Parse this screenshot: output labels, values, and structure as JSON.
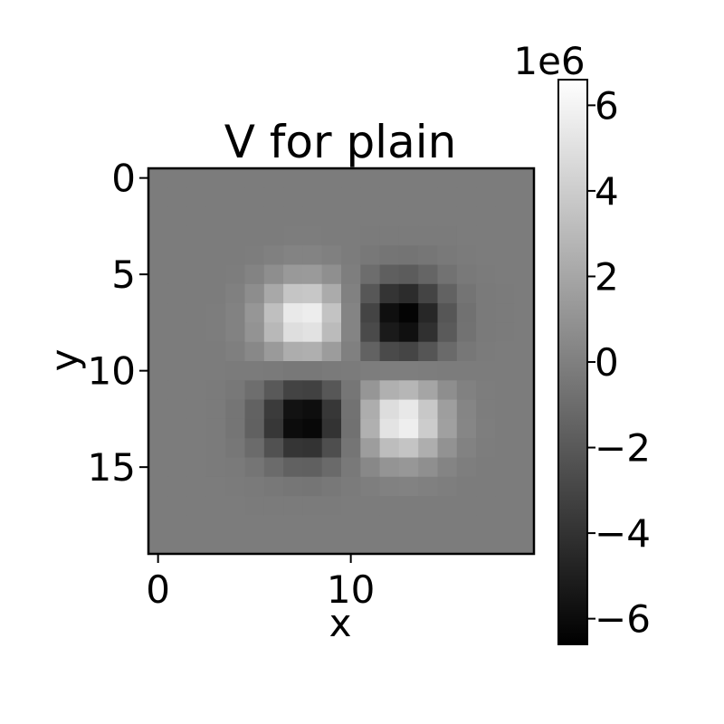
{
  "chart_data": {
    "type": "heatmap",
    "title": "V for plain",
    "xlabel": "x",
    "ylabel": "y",
    "grid_size": 20,
    "colormap": "gray",
    "colorbar": {
      "offset_label": "1e6",
      "range": [
        -6.6,
        6.6
      ],
      "ticks": [
        6,
        4,
        2,
        0,
        -2,
        -4,
        -6
      ],
      "tick_labels": [
        "6",
        "4",
        "2",
        "0",
        "−2",
        "−4",
        "−6"
      ]
    },
    "x_ticks": [
      0,
      10
    ],
    "x_tick_labels": [
      "0",
      "10"
    ],
    "y_ticks": [
      0,
      5,
      10,
      15
    ],
    "y_tick_labels": [
      "0",
      "5",
      "10",
      "15"
    ],
    "lobes": [
      {
        "cx": 7.6,
        "cy": 7.3,
        "peak": 6.3,
        "sx": 1.5,
        "sy": 1.4
      },
      {
        "cx": 12.7,
        "cy": 7.3,
        "peak": -6.5,
        "sx": 1.5,
        "sy": 1.4
      },
      {
        "cx": 7.6,
        "cy": 12.6,
        "peak": -6.5,
        "sx": 1.5,
        "sy": 1.4
      },
      {
        "cx": 12.7,
        "cy": 12.6,
        "peak": 6.3,
        "sx": 1.5,
        "sy": 1.4
      }
    ],
    "background_value": -0.2
  }
}
